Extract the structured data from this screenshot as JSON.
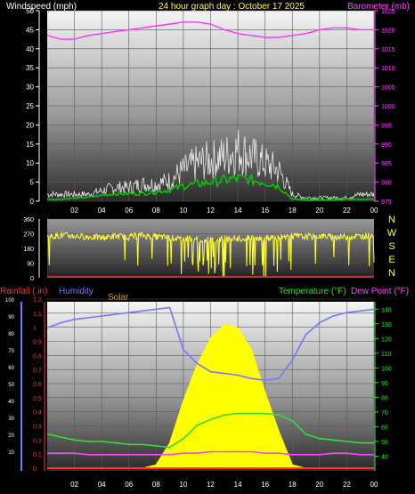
{
  "title": "24 hour graph day : October 17 2025",
  "colors": {
    "windspeed": "#ffffff",
    "gust": "#e8e8e8",
    "avg": "#00cc00",
    "barometer": "#ff33ff",
    "direction": "#ffff33",
    "rainfall": "#ff3333",
    "humidity": "#7777ff",
    "solar": "#ffff00",
    "temperature": "#33dd33",
    "dewpoint": "#ff44ff",
    "compass": "#ffff33",
    "axis_left": "#ffffff",
    "axis_right_baro": "#ff44ff",
    "axis_right_temp": "#33dd33"
  },
  "x_ticks": [
    "02",
    "04",
    "06",
    "08",
    "10",
    "12",
    "14",
    "16",
    "18",
    "20",
    "22",
    "00"
  ],
  "chart_data": [
    {
      "type": "line",
      "name": "wind",
      "label_left": "Windspeed (mph)",
      "label_right": "Barometer (mb)",
      "ylim": [
        0,
        50
      ],
      "y_ticks": [
        0,
        5,
        10,
        15,
        20,
        25,
        30,
        35,
        40,
        45,
        50
      ],
      "y2lim": [
        975,
        1025
      ],
      "y2_ticks": [
        975,
        980,
        985,
        990,
        995,
        1000,
        1005,
        1010,
        1015,
        1020,
        1025
      ],
      "x_hours": [
        0,
        1,
        2,
        3,
        4,
        5,
        6,
        7,
        8,
        9,
        10,
        11,
        12,
        13,
        14,
        15,
        16,
        17,
        18,
        19,
        20,
        21,
        22,
        23,
        24
      ],
      "series": [
        {
          "key": "gust",
          "values": [
            2,
            2,
            2,
            2,
            3,
            4,
            4,
            5,
            5,
            6,
            9,
            11,
            12,
            13,
            15,
            13,
            11,
            9,
            2,
            1,
            1,
            1,
            1,
            2,
            2
          ]
        },
        {
          "key": "avg",
          "values": [
            0.5,
            0.5,
            0.8,
            1,
            1.5,
            2,
            2,
            2,
            2.5,
            3,
            4,
            4.5,
            5,
            5.5,
            6,
            5.5,
            5,
            4,
            0.5,
            0.3,
            0.3,
            0.3,
            0.5,
            0.5,
            0.5
          ]
        },
        {
          "key": "barometer",
          "values": [
            1018.5,
            1017.5,
            1017.5,
            1018.5,
            1019,
            1019.5,
            1020,
            1020.5,
            1021,
            1021.5,
            1022,
            1022,
            1021.5,
            1020,
            1019,
            1018.5,
            1018,
            1018,
            1018.5,
            1019,
            1020,
            1020.5,
            1020.5,
            1020,
            1020
          ]
        }
      ]
    },
    {
      "type": "line",
      "name": "direction",
      "ylim": [
        0,
        360
      ],
      "y_ticks": [
        0,
        90,
        180,
        270,
        360
      ],
      "compass": [
        "N",
        "W",
        "S",
        "E",
        "N"
      ],
      "x_hours": [
        0,
        1,
        2,
        3,
        4,
        5,
        6,
        7,
        8,
        9,
        10,
        11,
        12,
        13,
        14,
        15,
        16,
        17,
        18,
        19,
        20,
        21,
        22,
        23,
        24
      ],
      "values": [
        250,
        260,
        255,
        250,
        245,
        255,
        250,
        260,
        250,
        245,
        240,
        235,
        230,
        240,
        235,
        245,
        240,
        250,
        255,
        250,
        255,
        250,
        250,
        255,
        260
      ]
    },
    {
      "type": "line",
      "name": "weather",
      "label_rainfall": "Rainfall (.in)",
      "label_humidity": "Humidity",
      "label_solar": "Solar",
      "label_temperature": "Temperature (°F)",
      "label_dewpoint": "Dew Point (°F)",
      "rain_ylim": [
        0,
        1.2
      ],
      "rain_ticks": [
        "0",
        "0.1",
        "0.2",
        "0.3",
        "0.4",
        "0.5",
        "0.6",
        "0.7",
        "0.8",
        "0.9",
        "1",
        "1.1",
        "1.2"
      ],
      "humidity_ticks": [
        10,
        20,
        30,
        40,
        50,
        60,
        70,
        80,
        90,
        100
      ],
      "temp_ylim": [
        30,
        145
      ],
      "temp_ticks": [
        40,
        50,
        60,
        70,
        80,
        90,
        100,
        110,
        120,
        130,
        140
      ],
      "x_hours": [
        0,
        1,
        2,
        3,
        4,
        5,
        6,
        7,
        8,
        9,
        10,
        11,
        12,
        13,
        14,
        15,
        16,
        17,
        18,
        19,
        20,
        21,
        22,
        23,
        24
      ],
      "series": [
        {
          "key": "humidity",
          "values": [
            83,
            86,
            88,
            89,
            90,
            91,
            92,
            93,
            94,
            95,
            70,
            62,
            57,
            56,
            55,
            53,
            52,
            53,
            64,
            79,
            86,
            90,
            92,
            93,
            94
          ]
        },
        {
          "key": "temperature",
          "values": [
            55,
            53,
            51,
            50,
            50,
            49,
            48,
            48,
            47,
            46,
            52,
            61,
            65,
            68,
            69,
            69,
            69,
            68,
            64,
            55,
            52,
            51,
            50,
            49,
            49
          ]
        },
        {
          "key": "dewpoint",
          "values": [
            42,
            42,
            42,
            41,
            41,
            41,
            41,
            41,
            41,
            41,
            42,
            42,
            43,
            43,
            43,
            43,
            42,
            42,
            41,
            41,
            41,
            42,
            42,
            41,
            41
          ]
        },
        {
          "key": "solar",
          "values": [
            0,
            0,
            0,
            0,
            0,
            0,
            0,
            0,
            2,
            15,
            40,
            61,
            77,
            85,
            83,
            70,
            45,
            22,
            2,
            0,
            0,
            0,
            0,
            0,
            0
          ]
        },
        {
          "key": "rainfall",
          "values": [
            0,
            0,
            0,
            0,
            0,
            0,
            0,
            0,
            0,
            0,
            0,
            0,
            0,
            0,
            0,
            0,
            0,
            0,
            0,
            0,
            0,
            0,
            0,
            0,
            0
          ]
        }
      ]
    }
  ]
}
